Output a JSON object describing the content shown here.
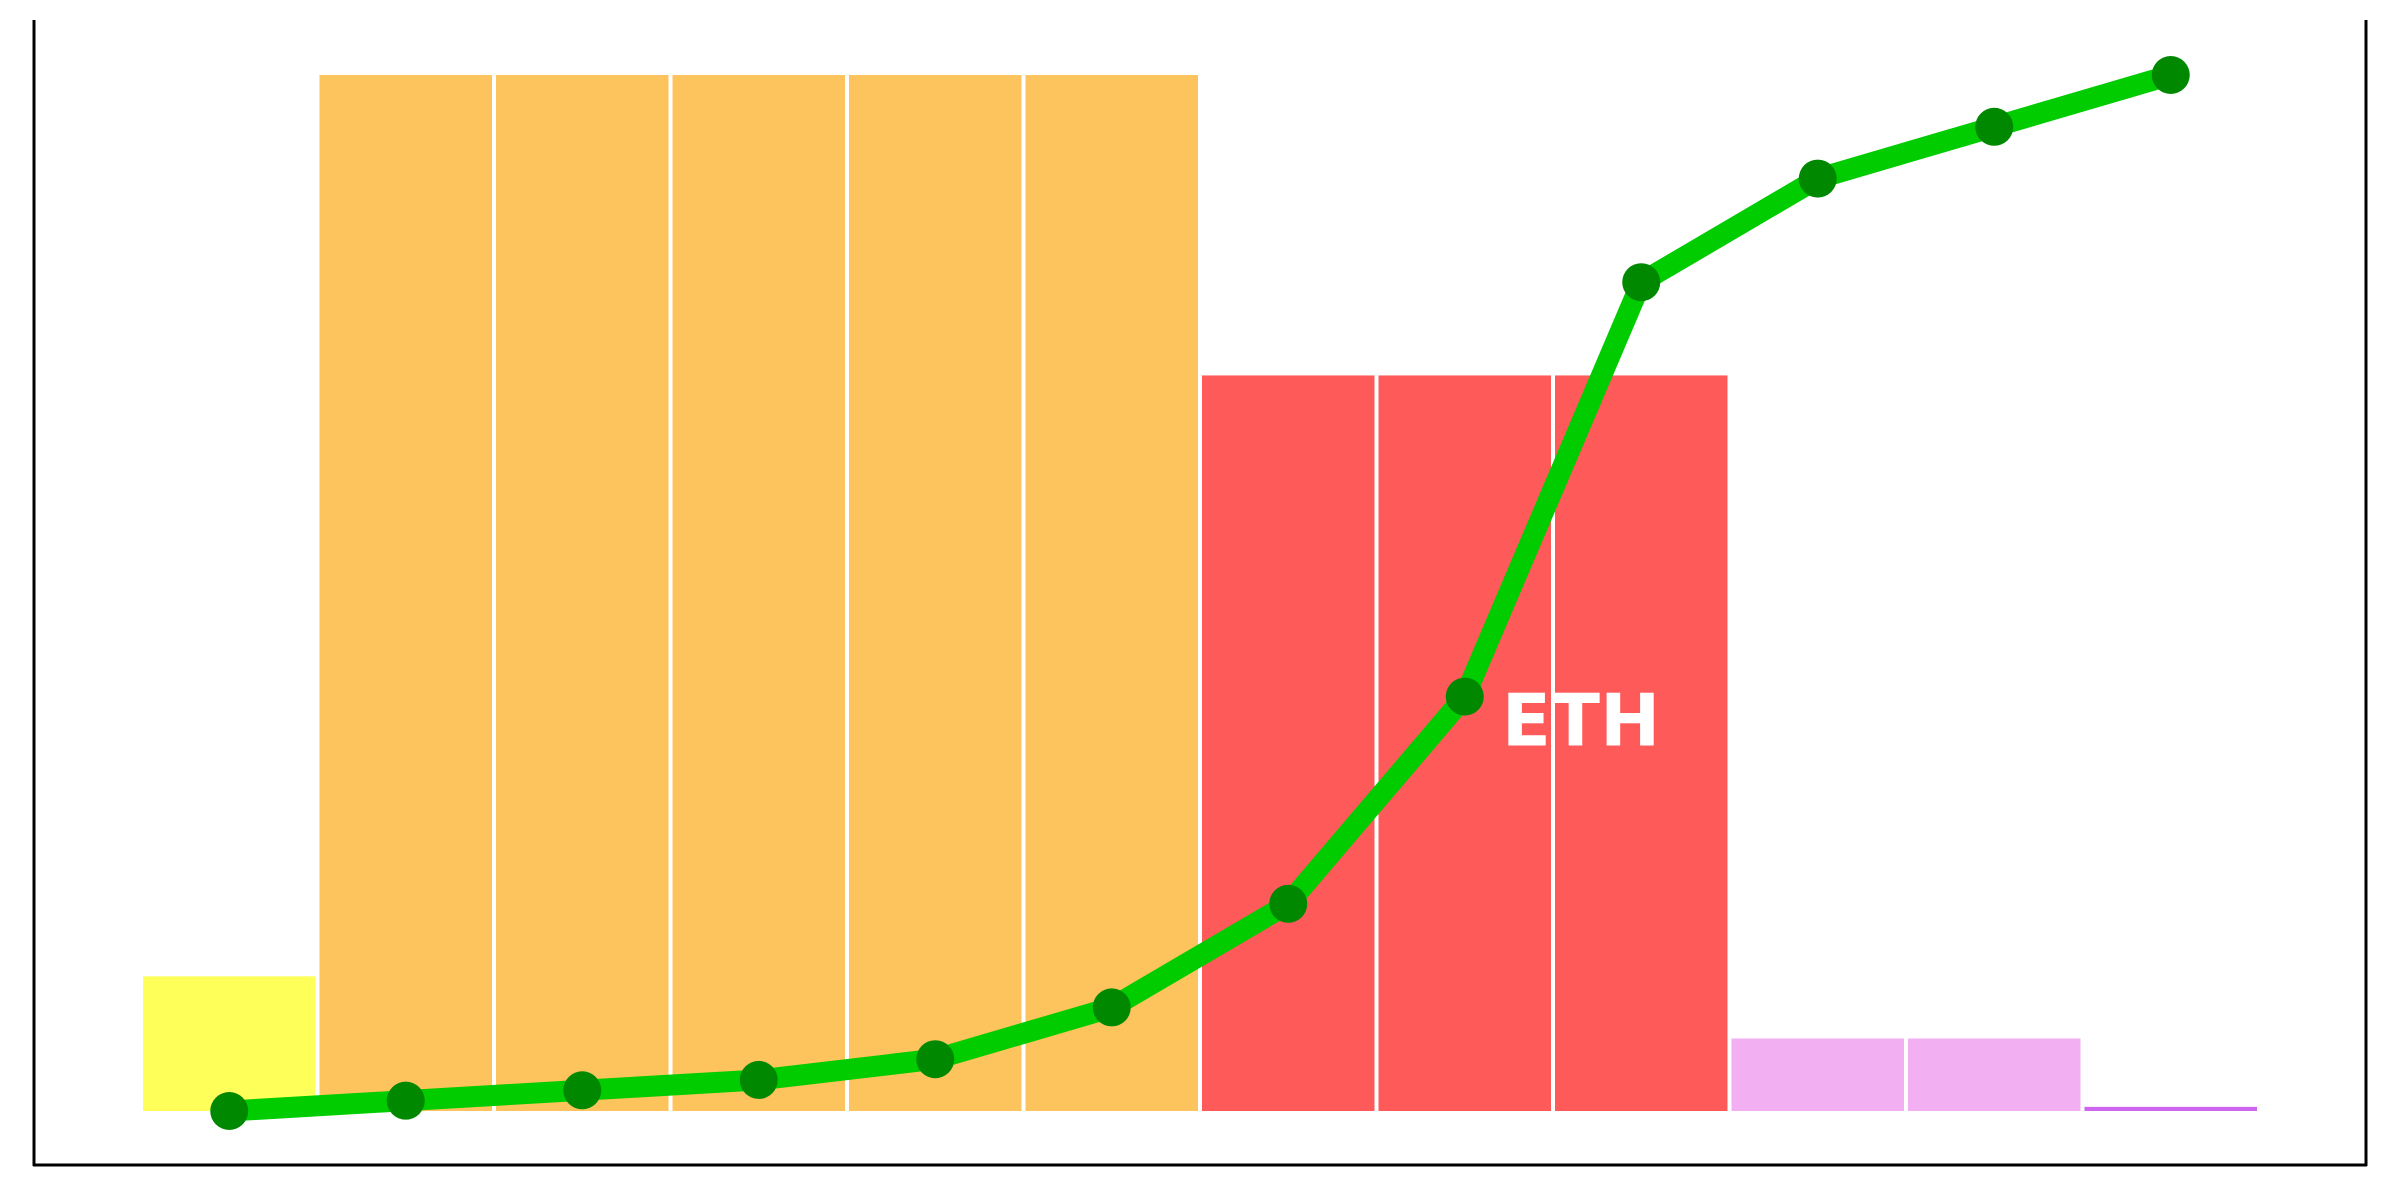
{
  "chart_data": {
    "type": "bar",
    "values": [
      13,
      100,
      100,
      100,
      100,
      100,
      71,
      71,
      71,
      7,
      7,
      0.4
    ],
    "colors": [
      "#ffff5a",
      "#fdc35c",
      "#fdc35c",
      "#fdc35c",
      "#fdc35c",
      "#fdc35c",
      "#ff5a5a",
      "#ff5a5a",
      "#ff5a5a",
      "#f2aff2",
      "#f2aff2",
      "#cc66ee"
    ],
    "line": {
      "color": "#00cc00",
      "marker_color": "#008800",
      "values": [
        0,
        1,
        2,
        3,
        5,
        10,
        20,
        40,
        80,
        90,
        95,
        100
      ]
    },
    "ylim": [
      0,
      100
    ],
    "annotations": [
      {
        "text": "ETH"
      }
    ]
  }
}
